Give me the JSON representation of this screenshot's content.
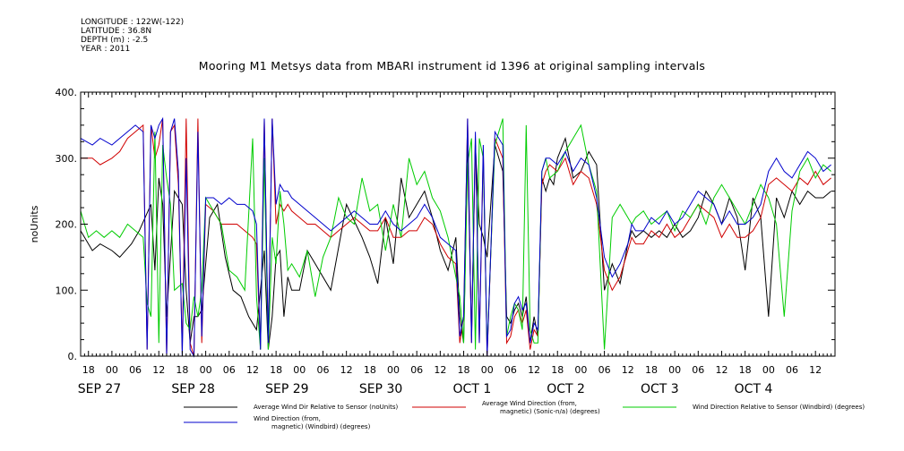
{
  "header": {
    "meta": [
      "LONGITUDE : 122W(-122)",
      "LATITUDE : 36.8N",
      "DEPTH (m) : -2.5",
      "YEAR : 2011"
    ],
    "title": "Mooring M1 Metsys data from MBARI instrument id 1396 at original sampling intervals"
  },
  "chart_data": {
    "type": "line",
    "title": "Mooring M1 Metsys data from MBARI instrument id 1396 at original sampling intervals",
    "ylabel": "noUnits",
    "xlabel": "",
    "ylim": [
      0,
      400
    ],
    "yticks": [
      0,
      100,
      200,
      300,
      400
    ],
    "ytick_labels": [
      "0.",
      "100.",
      "200.",
      "300.",
      "400."
    ],
    "xlim_hours": [
      -8,
      185
    ],
    "xtick_labels": [
      {
        "h": -6,
        "label": "18"
      },
      {
        "h": 0,
        "label": "00"
      },
      {
        "h": 6,
        "label": "06"
      },
      {
        "h": 12,
        "label": "12"
      },
      {
        "h": 18,
        "label": "18"
      },
      {
        "h": 24,
        "label": "00"
      },
      {
        "h": 30,
        "label": "06"
      },
      {
        "h": 36,
        "label": "12"
      },
      {
        "h": 42,
        "label": "18"
      },
      {
        "h": 48,
        "label": "00"
      },
      {
        "h": 54,
        "label": "06"
      },
      {
        "h": 60,
        "label": "12"
      },
      {
        "h": 66,
        "label": "18"
      },
      {
        "h": 72,
        "label": "00"
      },
      {
        "h": 78,
        "label": "06"
      },
      {
        "h": 84,
        "label": "12"
      },
      {
        "h": 90,
        "label": "18"
      },
      {
        "h": 96,
        "label": "00"
      },
      {
        "h": 102,
        "label": "06"
      },
      {
        "h": 108,
        "label": "12"
      },
      {
        "h": 114,
        "label": "18"
      },
      {
        "h": 120,
        "label": "00"
      },
      {
        "h": 126,
        "label": "06"
      },
      {
        "h": 132,
        "label": "12"
      },
      {
        "h": 138,
        "label": "18"
      },
      {
        "h": 144,
        "label": "00"
      },
      {
        "h": 150,
        "label": "06"
      },
      {
        "h": 156,
        "label": "12"
      },
      {
        "h": 162,
        "label": "18"
      },
      {
        "h": 168,
        "label": "00"
      },
      {
        "h": 174,
        "label": "06"
      },
      {
        "h": 180,
        "label": "12"
      }
    ],
    "date_labels": [
      {
        "h": -6,
        "label": "SEP 27"
      },
      {
        "h": 18,
        "label": "SEP 28"
      },
      {
        "h": 42,
        "label": "SEP 29"
      },
      {
        "h": 66,
        "label": "SEP 30"
      },
      {
        "h": 90,
        "label": "OCT  1"
      },
      {
        "h": 114,
        "label": "OCT  2"
      },
      {
        "h": 138,
        "label": "OCT  3"
      },
      {
        "h": 162,
        "label": "OCT  4"
      }
    ],
    "series": [
      {
        "name": "Average Wind Dir Relative to Sensor (noUnits)",
        "color": "#000000",
        "x": [
          -8,
          -5,
          -3,
          0,
          2,
          5,
          7,
          10,
          11,
          12,
          13,
          14,
          16,
          18,
          19,
          20,
          21,
          22,
          23,
          25,
          27,
          29,
          31,
          33,
          35,
          37,
          38,
          39,
          40,
          41,
          42,
          43,
          44,
          45,
          46,
          48,
          50,
          52,
          56,
          60,
          64,
          66,
          68,
          70,
          72,
          74,
          76,
          78,
          80,
          82,
          84,
          86,
          88,
          89,
          90,
          91,
          92,
          93,
          94,
          95,
          96,
          98,
          100,
          101,
          102,
          103,
          104,
          105,
          106,
          107,
          108,
          109,
          110,
          111,
          112,
          113,
          114,
          116,
          118,
          120,
          122,
          124,
          126,
          128,
          130,
          132,
          133,
          134,
          136,
          138,
          140,
          142,
          144,
          146,
          148,
          150,
          152,
          154,
          156,
          158,
          160,
          162,
          164,
          166,
          168,
          170,
          172,
          174,
          176,
          178,
          180,
          182,
          184
        ],
        "y": [
          190,
          160,
          170,
          160,
          150,
          170,
          190,
          230,
          130,
          270,
          230,
          60,
          250,
          230,
          100,
          20,
          60,
          60,
          70,
          210,
          230,
          150,
          100,
          90,
          60,
          40,
          100,
          160,
          10,
          60,
          150,
          160,
          60,
          120,
          100,
          100,
          160,
          140,
          100,
          230,
          180,
          150,
          110,
          210,
          140,
          270,
          210,
          230,
          250,
          210,
          160,
          130,
          180,
          60,
          20,
          320,
          30,
          320,
          200,
          180,
          150,
          320,
          280,
          60,
          50,
          70,
          80,
          60,
          90,
          20,
          60,
          30,
          270,
          250,
          270,
          260,
          300,
          330,
          270,
          280,
          310,
          290,
          100,
          140,
          110,
          170,
          190,
          180,
          190,
          180,
          190,
          180,
          200,
          180,
          190,
          210,
          250,
          230,
          200,
          240,
          210,
          130,
          240,
          210,
          60,
          240,
          210,
          250,
          230,
          250,
          240,
          240,
          250
        ]
      },
      {
        "name": "Average Wind Direction (from, magnetic) (Sonic-n/a) (degrees)",
        "color": "#d00000",
        "x": [
          -8,
          -5,
          -3,
          0,
          2,
          4,
          6,
          8,
          9,
          10,
          11,
          12,
          13,
          14,
          15,
          16,
          17,
          18,
          19,
          20,
          21,
          22,
          23,
          24,
          26,
          28,
          30,
          32,
          34,
          36,
          37,
          38,
          39,
          40,
          41,
          42,
          43,
          44,
          45,
          46,
          48,
          50,
          52,
          54,
          56,
          58,
          60,
          62,
          64,
          66,
          68,
          70,
          72,
          74,
          76,
          78,
          80,
          82,
          84,
          86,
          88,
          89,
          90,
          91,
          92,
          93,
          94,
          95,
          96,
          98,
          100,
          101,
          102,
          103,
          104,
          105,
          106,
          107,
          108,
          109,
          110,
          111,
          112,
          114,
          116,
          118,
          120,
          122,
          124,
          126,
          128,
          130,
          132,
          133,
          134,
          136,
          138,
          140,
          142,
          144,
          146,
          148,
          150,
          152,
          154,
          156,
          158,
          160,
          162,
          164,
          166,
          168,
          170,
          172,
          174,
          176,
          178,
          180,
          182,
          184
        ],
        "y": [
          300,
          300,
          290,
          300,
          310,
          330,
          340,
          350,
          10,
          350,
          300,
          320,
          360,
          0,
          340,
          350,
          260,
          10,
          360,
          20,
          0,
          360,
          20,
          230,
          220,
          200,
          200,
          200,
          190,
          180,
          170,
          10,
          360,
          20,
          360,
          200,
          230,
          220,
          230,
          220,
          210,
          200,
          200,
          190,
          180,
          190,
          200,
          210,
          200,
          190,
          190,
          210,
          180,
          180,
          190,
          190,
          210,
          200,
          170,
          150,
          140,
          20,
          60,
          360,
          20,
          330,
          20,
          310,
          0,
          330,
          300,
          20,
          30,
          60,
          70,
          50,
          70,
          10,
          40,
          30,
          260,
          280,
          290,
          280,
          300,
          260,
          280,
          270,
          230,
          130,
          100,
          120,
          160,
          180,
          170,
          170,
          190,
          180,
          200,
          180,
          190,
          210,
          230,
          220,
          210,
          180,
          200,
          180,
          180,
          190,
          210,
          260,
          270,
          260,
          250,
          270,
          260,
          280,
          260,
          270
        ]
      },
      {
        "name": "Wind Direction Relative to Sensor (Windbird) (degrees)",
        "color": "#00cc00",
        "x": [
          -8,
          -6,
          -4,
          -2,
          0,
          2,
          4,
          6,
          8,
          9,
          10,
          11,
          12,
          13,
          14,
          15,
          16,
          18,
          19,
          20,
          21,
          22,
          23,
          24,
          26,
          28,
          30,
          32,
          34,
          36,
          37,
          38,
          39,
          40,
          41,
          42,
          43,
          44,
          45,
          46,
          48,
          50,
          52,
          54,
          56,
          58,
          60,
          62,
          64,
          66,
          68,
          70,
          72,
          74,
          76,
          78,
          80,
          82,
          84,
          86,
          88,
          89,
          90,
          91,
          92,
          93,
          94,
          95,
          96,
          98,
          100,
          101,
          102,
          103,
          104,
          105,
          106,
          107,
          108,
          109,
          110,
          111,
          112,
          114,
          116,
          118,
          120,
          122,
          124,
          126,
          128,
          130,
          132,
          133,
          134,
          136,
          138,
          140,
          142,
          144,
          146,
          148,
          150,
          152,
          154,
          156,
          158,
          160,
          162,
          164,
          166,
          168,
          170,
          172,
          174,
          176,
          178,
          180,
          182,
          184
        ],
        "y": [
          220,
          180,
          190,
          180,
          190,
          180,
          200,
          190,
          180,
          80,
          60,
          340,
          20,
          320,
          270,
          230,
          100,
          110,
          50,
          40,
          90,
          60,
          100,
          240,
          220,
          200,
          130,
          120,
          100,
          330,
          90,
          10,
          300,
          10,
          180,
          140,
          250,
          200,
          130,
          140,
          120,
          160,
          90,
          150,
          180,
          240,
          210,
          200,
          270,
          220,
          230,
          160,
          230,
          180,
          300,
          260,
          280,
          240,
          220,
          180,
          120,
          90,
          20,
          290,
          330,
          10,
          330,
          300,
          10,
          320,
          360,
          30,
          60,
          80,
          70,
          40,
          350,
          40,
          20,
          20,
          280,
          300,
          270,
          280,
          310,
          330,
          350,
          290,
          250,
          10,
          210,
          230,
          210,
          200,
          210,
          220,
          200,
          210,
          220,
          190,
          220,
          210,
          230,
          200,
          240,
          260,
          240,
          220,
          200,
          230,
          260,
          240,
          200,
          60,
          220,
          280,
          300,
          270,
          290,
          280
        ]
      },
      {
        "name": "Wind Direction (from, magnetic) (Windbird) (degrees)",
        "color": "#0000cc",
        "x": [
          -8,
          -5,
          -3,
          0,
          2,
          4,
          6,
          8,
          9,
          10,
          11,
          12,
          13,
          14,
          15,
          16,
          17,
          18,
          19,
          20,
          21,
          22,
          23,
          24,
          26,
          28,
          30,
          32,
          34,
          36,
          37,
          38,
          39,
          40,
          41,
          42,
          43,
          44,
          45,
          46,
          48,
          50,
          52,
          54,
          56,
          58,
          60,
          62,
          64,
          66,
          68,
          70,
          72,
          74,
          76,
          78,
          80,
          82,
          84,
          86,
          88,
          89,
          90,
          91,
          92,
          93,
          94,
          95,
          96,
          98,
          100,
          101,
          102,
          103,
          104,
          105,
          106,
          107,
          108,
          109,
          110,
          111,
          112,
          114,
          116,
          118,
          120,
          122,
          124,
          126,
          128,
          130,
          132,
          133,
          134,
          136,
          138,
          140,
          142,
          144,
          146,
          148,
          150,
          152,
          154,
          156,
          158,
          160,
          162,
          164,
          166,
          168,
          170,
          172,
          174,
          176,
          178,
          180,
          182,
          184
        ],
        "y": [
          330,
          320,
          330,
          320,
          330,
          340,
          350,
          340,
          10,
          350,
          330,
          350,
          360,
          0,
          340,
          360,
          280,
          0,
          300,
          10,
          0,
          340,
          30,
          240,
          240,
          230,
          240,
          230,
          230,
          220,
          200,
          10,
          360,
          20,
          360,
          230,
          260,
          250,
          250,
          240,
          230,
          220,
          210,
          200,
          190,
          200,
          210,
          220,
          210,
          200,
          200,
          220,
          200,
          190,
          200,
          210,
          230,
          210,
          180,
          170,
          160,
          30,
          60,
          360,
          20,
          340,
          20,
          320,
          0,
          340,
          320,
          30,
          40,
          80,
          90,
          70,
          80,
          20,
          50,
          40,
          280,
          300,
          300,
          290,
          310,
          280,
          300,
          290,
          240,
          150,
          120,
          140,
          170,
          200,
          190,
          190,
          210,
          200,
          220,
          200,
          210,
          230,
          250,
          240,
          230,
          200,
          220,
          200,
          200,
          210,
          230,
          280,
          300,
          280,
          270,
          290,
          310,
          300,
          280,
          290
        ]
      }
    ],
    "legend": [
      {
        "label": "Average Wind Dir Relative to Sensor (noUnits)",
        "color": "#000000"
      },
      {
        "label": "Average Wind Direction (from, magnetic) (Sonic-n/a) (degrees)",
        "color": "#d00000"
      },
      {
        "label": "Wind Direction Relative to Sensor (Windbird) (degrees)",
        "color": "#00cc00"
      },
      {
        "label": "Wind Direction (from, magnetic) (Windbird) (degrees)",
        "color": "#0000cc"
      }
    ],
    "legend_placement": "bottom",
    "grid": false
  }
}
